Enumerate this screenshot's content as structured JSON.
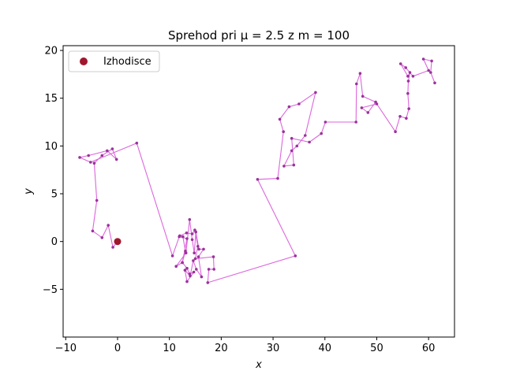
{
  "chart_data": {
    "type": "line",
    "title": "Sprehod pri μ = 2.5 z m = 100",
    "xlabel": "x",
    "ylabel": "y",
    "xlim": [
      -10.5,
      65
    ],
    "ylim": [
      -10,
      20.5
    ],
    "xticks": [
      -10,
      0,
      10,
      20,
      30,
      40,
      50,
      60
    ],
    "yticks": [
      -5,
      0,
      5,
      10,
      15,
      20
    ],
    "xtick_labels": [
      "−10",
      "0",
      "10",
      "20",
      "30",
      "40",
      "50",
      "60"
    ],
    "ytick_labels": [
      "−5",
      "0",
      "5",
      "10",
      "15",
      "20"
    ],
    "grid": false,
    "legend": {
      "placement": "top-left",
      "entries": [
        "Izhodisce"
      ]
    },
    "colors": {
      "path": "#dd66dd",
      "points": "#993399",
      "start": "#a0182e"
    },
    "start": {
      "x": 0,
      "y": 0
    },
    "series": [
      {
        "values": [
          [
            0,
            0
          ],
          [
            -0.9,
            -0.6
          ],
          [
            -1.8,
            1.7
          ],
          [
            -3.0,
            0.4
          ],
          [
            -4.8,
            1.1
          ],
          [
            -4.0,
            4.3
          ],
          [
            -4.5,
            8.2
          ],
          [
            -3.0,
            9.0
          ],
          [
            -1.0,
            9.7
          ],
          [
            -0.2,
            8.6
          ],
          [
            -2.0,
            9.5
          ],
          [
            -5.6,
            9.0
          ],
          [
            -7.3,
            8.8
          ],
          [
            -5.2,
            8.3
          ],
          [
            3.7,
            10.3
          ],
          [
            10.6,
            -1.5
          ],
          [
            11.9,
            0.5
          ],
          [
            13.4,
            0.3
          ],
          [
            12.5,
            -2.2
          ],
          [
            11.3,
            -2.6
          ],
          [
            13.2,
            -1.2
          ],
          [
            13.9,
            2.3
          ],
          [
            14.4,
            0.2
          ],
          [
            14.8,
            -1.2
          ],
          [
            15.1,
            1.0
          ],
          [
            15.7,
            -0.8
          ],
          [
            16.6,
            -0.8
          ],
          [
            15.6,
            -1.6
          ],
          [
            16.2,
            -3.7
          ],
          [
            15.2,
            -2.9
          ],
          [
            14.6,
            -2.0
          ],
          [
            14.0,
            -3.6
          ],
          [
            13.0,
            -3.0
          ],
          [
            13.4,
            -4.2
          ],
          [
            14.7,
            -3.2
          ],
          [
            13.9,
            -3.4
          ],
          [
            13.4,
            -2.8
          ],
          [
            12.5,
            -2.2
          ],
          [
            13.1,
            -1.0
          ],
          [
            12.6,
            0.5
          ],
          [
            12.0,
            0.6
          ],
          [
            13.3,
            0.9
          ],
          [
            14.4,
            0.8
          ],
          [
            14.9,
            1.2
          ],
          [
            15.5,
            -0.5
          ],
          [
            15.0,
            -1.8
          ],
          [
            18.5,
            -1.6
          ],
          [
            18.6,
            -2.9
          ],
          [
            17.6,
            -2.9
          ],
          [
            17.4,
            -4.3
          ],
          [
            34.3,
            -1.5
          ],
          [
            27.0,
            6.5
          ],
          [
            30.9,
            6.6
          ],
          [
            32.0,
            11.5
          ],
          [
            31.3,
            12.8
          ],
          [
            33.1,
            14.1
          ],
          [
            35.0,
            14.4
          ],
          [
            38.2,
            15.6
          ],
          [
            36.2,
            11.1
          ],
          [
            34.6,
            10.0
          ],
          [
            33.6,
            9.5
          ],
          [
            32.1,
            7.9
          ],
          [
            34.0,
            8.0
          ],
          [
            33.6,
            10.8
          ],
          [
            37.0,
            10.4
          ],
          [
            39.3,
            11.3
          ],
          [
            40.1,
            12.5
          ],
          [
            46.0,
            12.5
          ],
          [
            46.1,
            16.5
          ],
          [
            46.8,
            17.6
          ],
          [
            47.3,
            15.2
          ],
          [
            49.8,
            14.6
          ],
          [
            48.3,
            13.5
          ],
          [
            47.1,
            14.0
          ],
          [
            50.0,
            14.4
          ],
          [
            53.6,
            11.5
          ],
          [
            54.5,
            13.1
          ],
          [
            55.7,
            12.9
          ],
          [
            56.2,
            13.9
          ],
          [
            56.0,
            15.5
          ],
          [
            56.1,
            16.8
          ],
          [
            56.4,
            17.7
          ],
          [
            56.0,
            17.3
          ],
          [
            54.6,
            18.6
          ],
          [
            55.6,
            18.2
          ],
          [
            57.0,
            17.3
          ],
          [
            60.0,
            17.9
          ],
          [
            59.0,
            19.1
          ],
          [
            60.6,
            18.9
          ],
          [
            60.4,
            17.7
          ],
          [
            61.2,
            16.6
          ]
        ]
      }
    ]
  }
}
